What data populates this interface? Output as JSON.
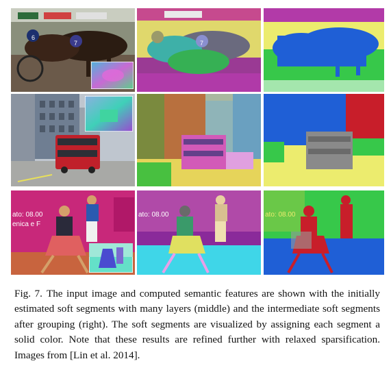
{
  "figure": {
    "rows": [
      {
        "name": "horse-race",
        "columns": [
          "input-image",
          "initial-soft-segments",
          "grouped-soft-segments"
        ],
        "image_text": [
          "6",
          "7",
          "7"
        ]
      },
      {
        "name": "street-bus",
        "columns": [
          "input-image",
          "initial-soft-segments",
          "grouped-soft-segments"
        ]
      },
      {
        "name": "tennis-player",
        "columns": [
          "input-image",
          "initial-soft-segments",
          "grouped-soft-segments"
        ],
        "image_text": [
          "ato: 08.00",
          "enica e F",
          "ato: 08.00"
        ]
      }
    ],
    "colors": {
      "segment_yellow": "#ecec6e",
      "segment_blue": "#1f5fd6",
      "segment_green": "#37c84a",
      "segment_red": "#c81e2a",
      "segment_magenta": "#b23aa8",
      "segment_cyan": "#3fd6e8"
    }
  },
  "caption": {
    "label": "Fig. 7.",
    "text": "The input image and computed semantic features are shown with the initially estimated soft segments with many layers (middle) and the intermediate soft segments after grouping (right). The soft segments are visualized by assigning each segment a solid color. Note that these results are refined further with relaxed sparsification. Images from [Lin et al. 2014]."
  }
}
